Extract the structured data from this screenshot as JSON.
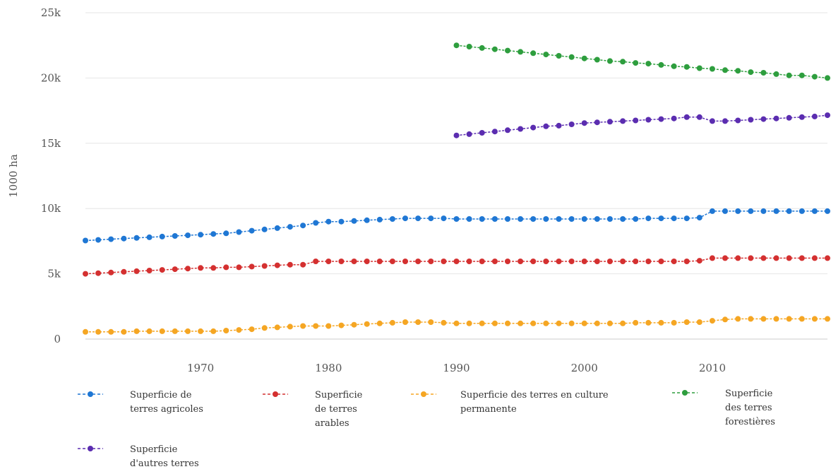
{
  "chart_data": {
    "type": "line",
    "ylabel": "1000 ha",
    "ylim": [
      0,
      25000
    ],
    "xlim": [
      1961,
      2019
    ],
    "y_ticks": [
      {
        "value": 0,
        "label": "0"
      },
      {
        "value": 5000,
        "label": "5k"
      },
      {
        "value": 10000,
        "label": "10k"
      },
      {
        "value": 15000,
        "label": "15k"
      },
      {
        "value": 20000,
        "label": "20k"
      },
      {
        "value": 25000,
        "label": "25k"
      }
    ],
    "x_ticks": [
      {
        "value": 1970,
        "label": "1970"
      },
      {
        "value": 1980,
        "label": "1980"
      },
      {
        "value": 1990,
        "label": "1990"
      },
      {
        "value": 2000,
        "label": "2000"
      },
      {
        "value": 2010,
        "label": "2010"
      }
    ],
    "grid": "horizontal",
    "legend_position": "bottom",
    "series": [
      {
        "name": "Superficie de terres agricoles",
        "legend_lines": [
          "Superficie de",
          "terres agricoles"
        ],
        "color": "#1f77d4",
        "x_start": 1961,
        "values": [
          7550,
          7600,
          7650,
          7700,
          7750,
          7800,
          7850,
          7900,
          7950,
          8000,
          8050,
          8100,
          8200,
          8300,
          8400,
          8500,
          8600,
          8700,
          8900,
          9000,
          9000,
          9050,
          9100,
          9150,
          9200,
          9250,
          9250,
          9250,
          9250,
          9200,
          9200,
          9200,
          9200,
          9200,
          9200,
          9200,
          9200,
          9200,
          9200,
          9200,
          9200,
          9200,
          9200,
          9200,
          9250,
          9250,
          9250,
          9250,
          9300,
          9800,
          9800,
          9800,
          9800,
          9800,
          9800,
          9800,
          9800,
          9800,
          9800
        ]
      },
      {
        "name": "Superficie de terres arables",
        "legend_lines": [
          "Superficie",
          "de terres",
          "arables"
        ],
        "color": "#d43030",
        "x_start": 1961,
        "values": [
          5000,
          5050,
          5100,
          5150,
          5200,
          5250,
          5300,
          5350,
          5400,
          5450,
          5450,
          5500,
          5500,
          5550,
          5600,
          5650,
          5700,
          5700,
          5950,
          5950,
          5950,
          5950,
          5950,
          5950,
          5950,
          5950,
          5950,
          5950,
          5950,
          5950,
          5950,
          5950,
          5950,
          5950,
          5950,
          5950,
          5950,
          5950,
          5950,
          5950,
          5950,
          5950,
          5950,
          5950,
          5950,
          5950,
          5950,
          5950,
          6000,
          6200,
          6200,
          6200,
          6200,
          6200,
          6200,
          6200,
          6200,
          6200,
          6200
        ]
      },
      {
        "name": "Superficie des terres en culture permanente",
        "legend_lines": [
          "Superficie des terres en culture",
          "permanente"
        ],
        "color": "#f5a623",
        "x_start": 1961,
        "values": [
          550,
          550,
          550,
          550,
          600,
          600,
          600,
          600,
          600,
          600,
          600,
          650,
          700,
          750,
          850,
          900,
          950,
          1000,
          1000,
          1000,
          1050,
          1100,
          1150,
          1200,
          1250,
          1300,
          1300,
          1300,
          1250,
          1200,
          1200,
          1200,
          1200,
          1200,
          1200,
          1200,
          1200,
          1200,
          1200,
          1200,
          1200,
          1200,
          1200,
          1250,
          1250,
          1250,
          1250,
          1300,
          1300,
          1400,
          1500,
          1550,
          1550,
          1550,
          1550,
          1550,
          1550,
          1550,
          1550
        ]
      },
      {
        "name": "Superficie des terres forestières",
        "legend_lines": [
          "Superficie",
          "des terres",
          "forestières"
        ],
        "color": "#2e9e3e",
        "x_start": 1990,
        "values": [
          22500,
          22400,
          22300,
          22200,
          22100,
          22000,
          21900,
          21800,
          21700,
          21600,
          21500,
          21400,
          21300,
          21250,
          21150,
          21100,
          21000,
          20900,
          20850,
          20750,
          20700,
          20600,
          20550,
          20450,
          20400,
          20300,
          20200,
          20200,
          20100,
          20000
        ]
      },
      {
        "name": "Superficie d'autres terres",
        "legend_lines": [
          "Superficie",
          "d'autres terres"
        ],
        "color": "#5b2db0",
        "x_start": 1990,
        "values": [
          15600,
          15700,
          15800,
          15900,
          16000,
          16100,
          16200,
          16300,
          16350,
          16450,
          16550,
          16600,
          16650,
          16700,
          16750,
          16800,
          16850,
          16900,
          17000,
          17000,
          16700,
          16700,
          16750,
          16800,
          16850,
          16900,
          16950,
          17000,
          17050,
          17150
        ]
      }
    ]
  }
}
